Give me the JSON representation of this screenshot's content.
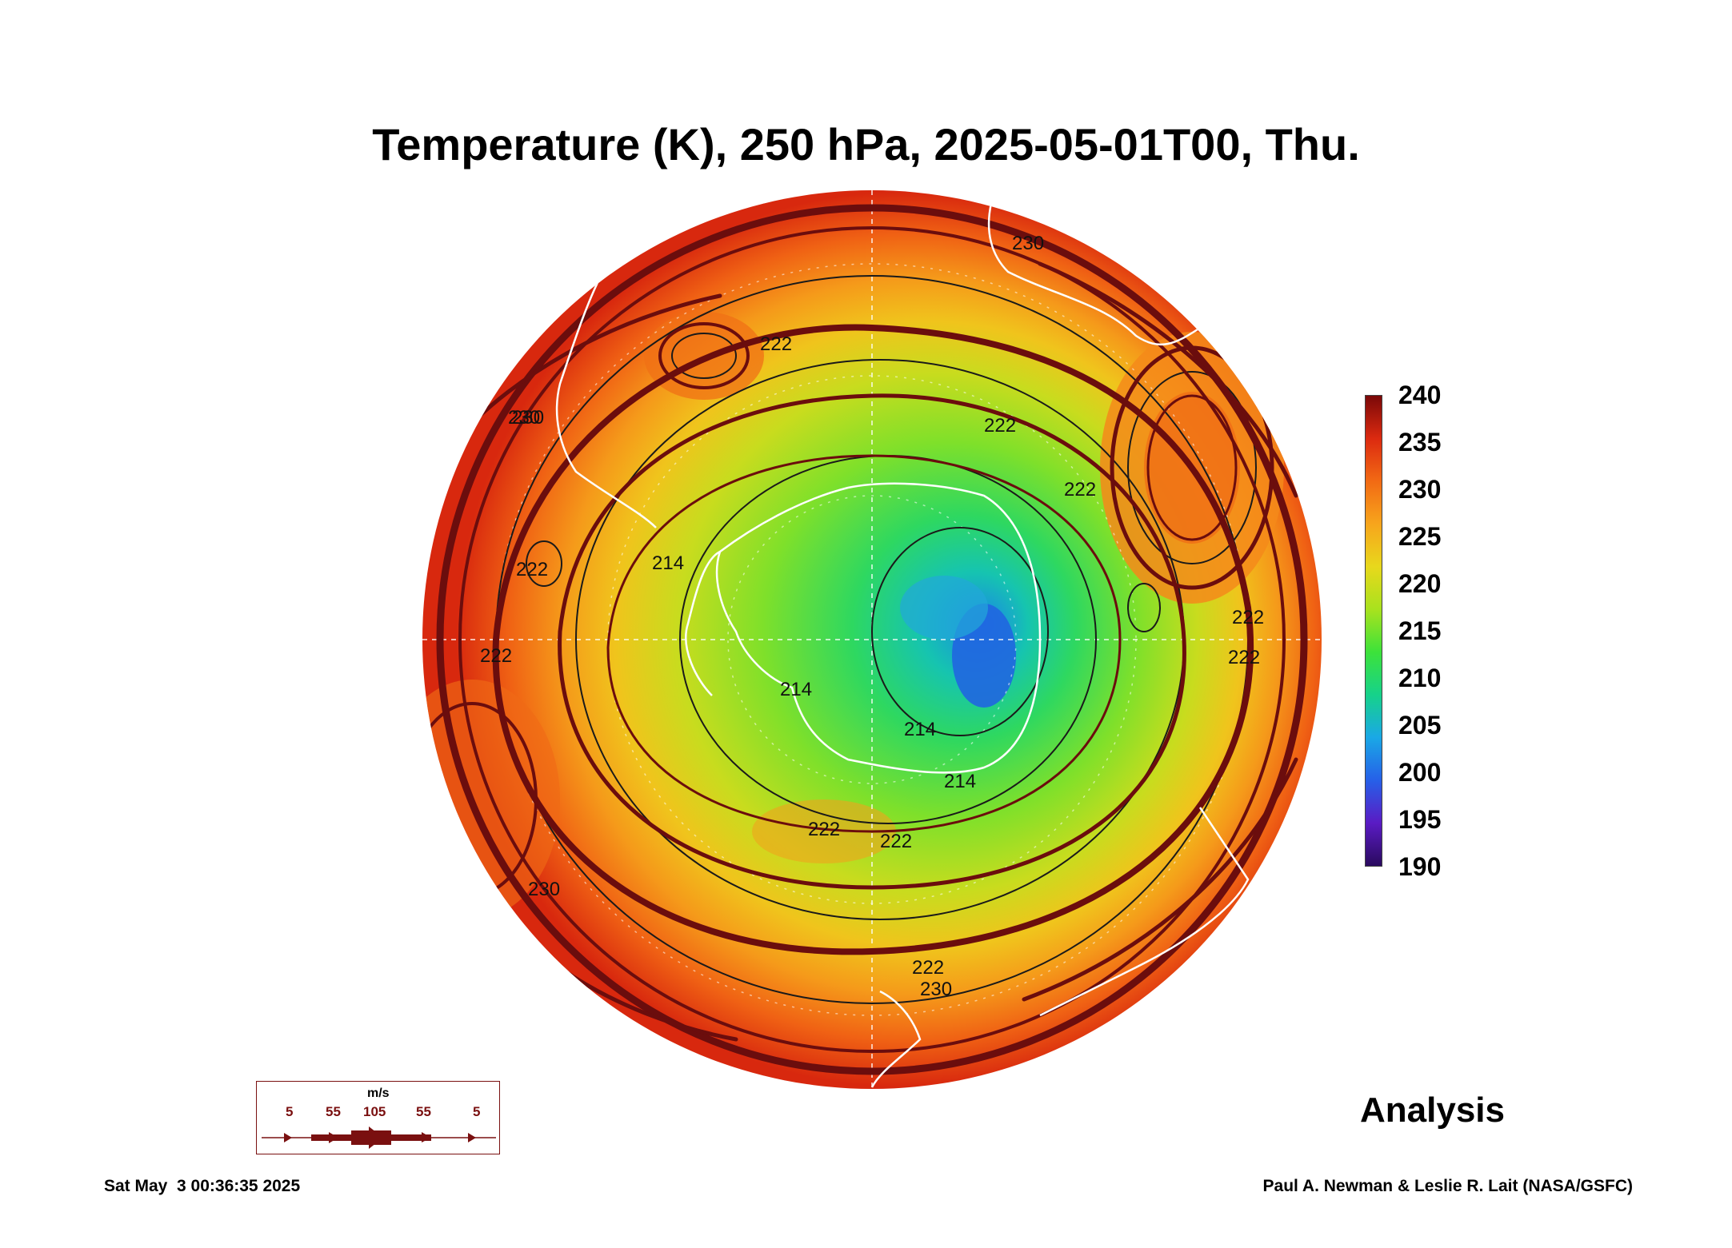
{
  "header": {
    "title": "Temperature (K), 250 hPa, 2025-05-01T00, Thu."
  },
  "map": {
    "projection": "south polar stereographic",
    "field": "temperature",
    "contour_labels": [
      "230",
      "222",
      "222",
      "230",
      "222",
      "222",
      "214",
      "214",
      "214",
      "222",
      "222",
      "222",
      "222",
      "230",
      "222",
      "230",
      "230",
      "222",
      "214"
    ],
    "colors": {
      "coastline": "#ffffff",
      "contour": "#1a1a1a",
      "streamline": "#6b0d0d"
    }
  },
  "colorbar": {
    "labels": [
      "240",
      "235",
      "230",
      "225",
      "220",
      "215",
      "210",
      "205",
      "200",
      "195",
      "190"
    ],
    "min": 190,
    "max": 240,
    "colors": [
      "#2a0a5e",
      "#5a1bc4",
      "#2660e8",
      "#1aa8e6",
      "#16d28a",
      "#3de23a",
      "#a8e21e",
      "#e8d81c",
      "#f7a51c",
      "#f26a14",
      "#dc2a10",
      "#7a0808"
    ]
  },
  "wind_legend": {
    "unit": "m/s",
    "speeds": [
      "5",
      "55",
      "105",
      "55",
      "5"
    ]
  },
  "footer": {
    "analysis_label": "Analysis",
    "timestamp": "Sat May  3 00:36:35 2025",
    "credit": "Paul A. Newman & Leslie R. Lait (NASA/GSFC)"
  }
}
